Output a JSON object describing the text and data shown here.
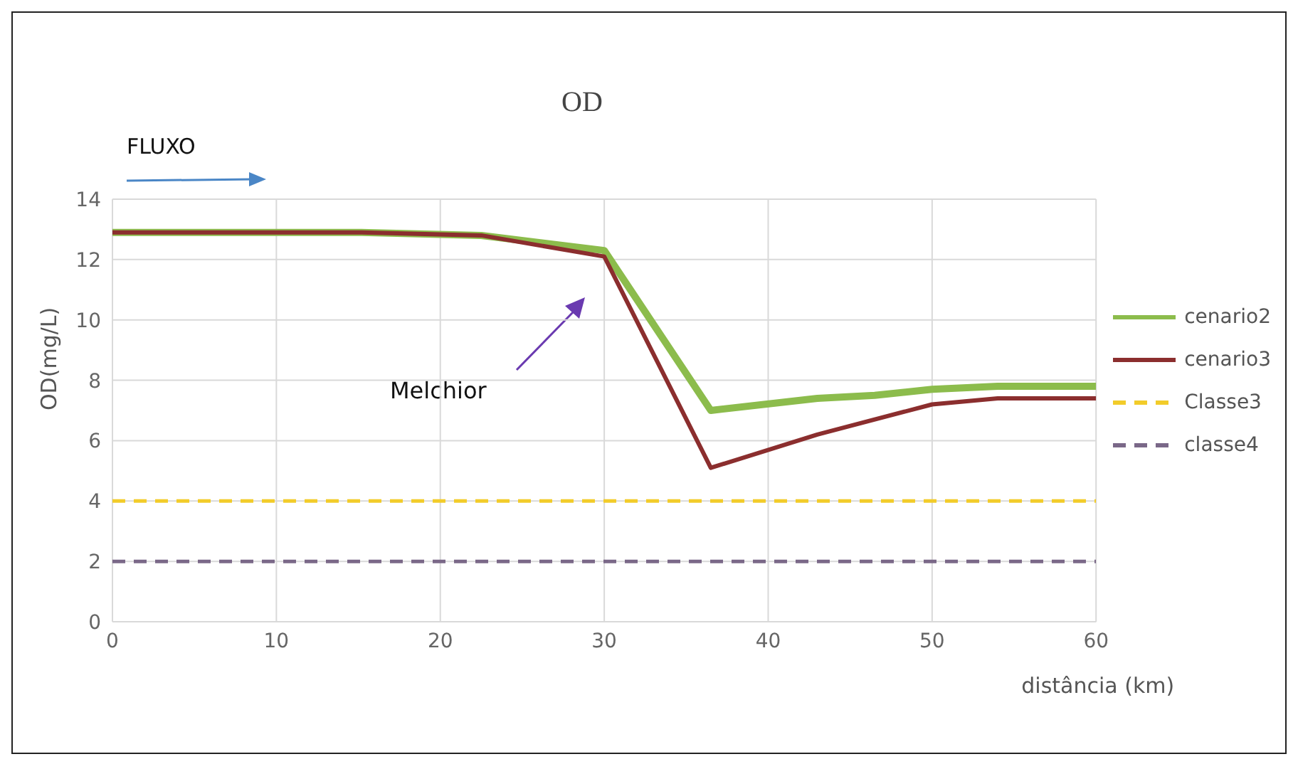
{
  "chart_data": {
    "type": "line",
    "title": "OD",
    "xlabel": "distância (km)",
    "ylabel": "OD(mg/L)",
    "annotations": [
      "FLUXO",
      "Melchior"
    ],
    "xlim": [
      0,
      60
    ],
    "xticks": [
      0,
      10,
      20,
      30,
      40,
      50,
      60
    ],
    "ylim": [
      0,
      14
    ],
    "yticks": [
      0,
      2,
      4,
      6,
      8,
      10,
      12,
      14
    ],
    "grid": true,
    "legend": "right",
    "marker": "none",
    "series": [
      {
        "name": "cenario2",
        "color": "#8cbc4c",
        "line_style": "solid",
        "x": [
          0,
          15,
          22.5,
          30,
          36.5,
          43,
          46.5,
          50,
          54,
          60
        ],
        "values": [
          12.9,
          12.9,
          12.8,
          12.3,
          7.0,
          7.4,
          7.5,
          7.7,
          7.8,
          7.8
        ]
      },
      {
        "name": "cenario3",
        "color": "#8b2e2e",
        "line_style": "solid",
        "x": [
          0,
          15,
          22.5,
          30,
          36.5,
          43,
          50,
          54,
          60
        ],
        "values": [
          12.9,
          12.9,
          12.8,
          12.1,
          5.1,
          6.2,
          7.2,
          7.4,
          7.4
        ]
      },
      {
        "name": "Classe3",
        "color": "#f2cc2a",
        "line_style": "dashed",
        "x": [
          0,
          60
        ],
        "values": [
          4,
          4
        ]
      },
      {
        "name": "classe4",
        "color": "#7a6888",
        "line_style": "dashed",
        "x": [
          0,
          60
        ],
        "values": [
          2,
          2
        ]
      }
    ]
  }
}
